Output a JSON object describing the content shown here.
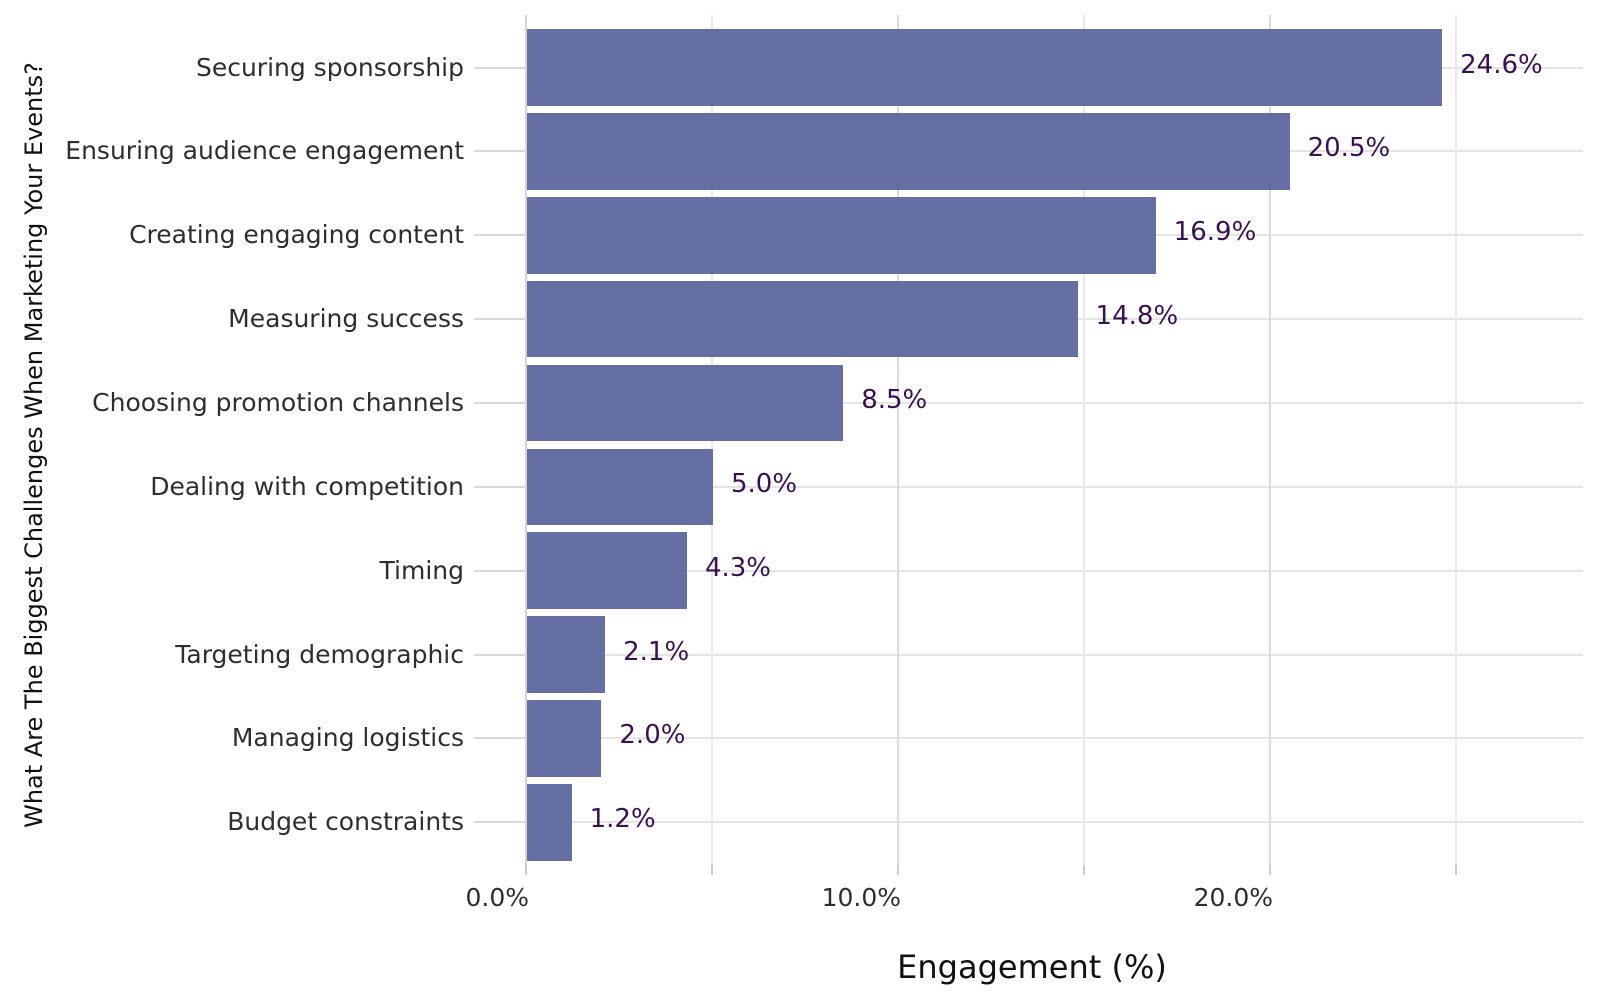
{
  "chart_data": {
    "type": "bar",
    "orientation": "horizontal",
    "categories": [
      "Securing sponsorship",
      "Ensuring audience engagement",
      "Creating engaging content",
      "Measuring success",
      "Choosing promotion channels",
      "Dealing with competition",
      "Timing",
      "Targeting demographic",
      "Managing logistics",
      "Budget constraints"
    ],
    "values": [
      24.6,
      20.5,
      16.9,
      14.8,
      8.5,
      5.0,
      4.3,
      2.1,
      2.0,
      1.2
    ],
    "value_labels": [
      "24.6%",
      "20.5%",
      "16.9%",
      "14.8%",
      "8.5%",
      "5.0%",
      "4.3%",
      "2.1%",
      "2.0%",
      "1.2%"
    ],
    "xlabel": "Engagement (%)",
    "ylabel": "What Are The Biggest Challenges When Marketing Your Events?",
    "xlim": [
      0,
      28.4
    ],
    "x_ticks": [
      {
        "value": 0,
        "label": "0.0%"
      },
      {
        "value": 10,
        "label": "10.0%"
      },
      {
        "value": 20,
        "label": "20.0%"
      }
    ],
    "x_minor_tick_values": [
      0,
      5,
      10,
      15,
      20,
      25
    ],
    "gridline_values": [
      5,
      10,
      15,
      20,
      25
    ],
    "grid": true,
    "legend": false,
    "colors": {
      "bar": "rgba(84,95,154,0.9)",
      "bar_solid": "#656fa4",
      "value_label": "#3a1150",
      "axis_text": "#2e2e2e",
      "axis_title": "#111111",
      "grid_major": "#dcdcdc",
      "grid_minor": "#e9e9e9",
      "grid_horizontal": "#e4e4e4",
      "axis_line": "#d4d4d4",
      "tick_mark": "#c9c9c9",
      "y_tick_dash": "#d9d9d9"
    }
  }
}
